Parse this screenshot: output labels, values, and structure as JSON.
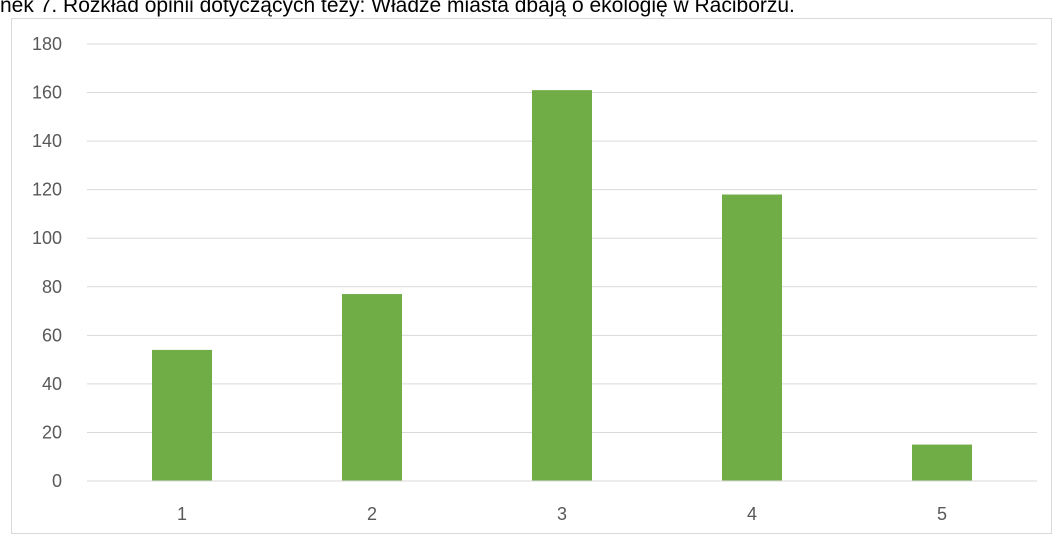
{
  "caption": "nek 7. Rozkład opinii dotyczących tezy: Władze miasta dbają o ekologię w Raciborzu.",
  "chart_data": {
    "type": "bar",
    "categories": [
      "1",
      "2",
      "3",
      "4",
      "5"
    ],
    "values": [
      54,
      77,
      161,
      118,
      15
    ],
    "ylim": [
      0,
      180
    ],
    "yticks": [
      0,
      20,
      40,
      60,
      80,
      100,
      120,
      140,
      160,
      180
    ],
    "grid": true,
    "bar_color": "#70ad47",
    "grid_color": "#d9d9d9",
    "axis_color": "#d9d9d9",
    "tick_color": "#595959"
  }
}
